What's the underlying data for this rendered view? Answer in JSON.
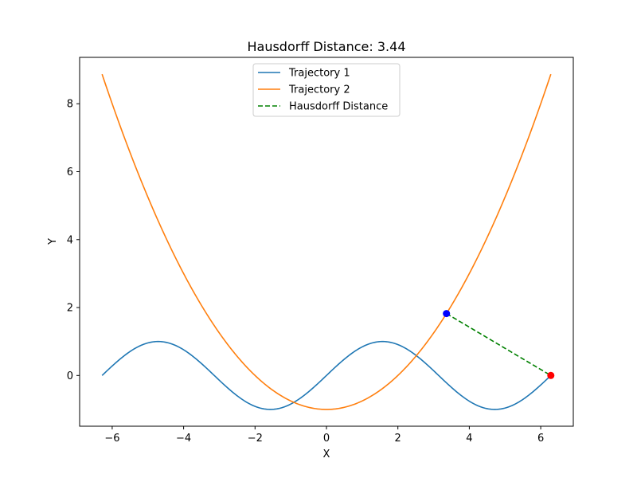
{
  "chart_data": {
    "type": "line",
    "title": "Hausdorff Distance: 3.44",
    "xlabel": "X",
    "ylabel": "Y",
    "xlim": [
      -6.912,
      6.912
    ],
    "ylim": [
      -1.494,
      9.366
    ],
    "xticks": [
      -6,
      -4,
      -2,
      0,
      2,
      4,
      6
    ],
    "yticks": [
      0,
      2,
      4,
      6,
      8
    ],
    "grid": false,
    "legend_position": "top-center",
    "series": [
      {
        "name": "Trajectory 1",
        "color": "#1f77b4",
        "function": "sin(x)",
        "x_range": [
          -6.2832,
          6.2832
        ]
      },
      {
        "name": "Trajectory 2",
        "color": "#ff7f0e",
        "function": "0.25*x^2 - 1",
        "x_range": [
          -6.2832,
          6.2832
        ]
      },
      {
        "name": "Hausdorff Distance",
        "color": "#008000",
        "style": "dashed",
        "points": [
          [
            3.36,
            1.823
          ],
          [
            6.283,
            0.0
          ]
        ]
      }
    ],
    "markers": [
      {
        "x": 3.36,
        "y": 1.823,
        "color": "#0000ff"
      },
      {
        "x": 6.283,
        "y": 0.0,
        "color": "#ff0000"
      }
    ]
  }
}
